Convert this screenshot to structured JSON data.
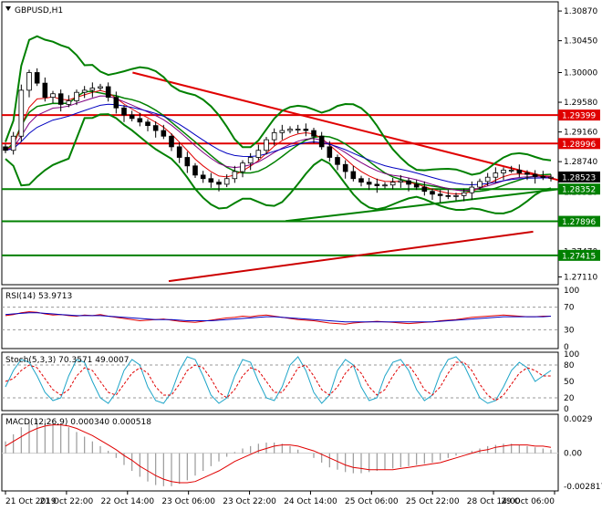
{
  "chart_data": {
    "type": "candlestick",
    "symbol_label": "GBPUSD,H1",
    "main": {
      "ylim": [
        1.27,
        1.31
      ],
      "yticks": [
        "1.30870",
        "1.30450",
        "1.30000",
        "1.29580",
        "1.29160",
        "1.28740",
        "1.28310",
        "1.27890",
        "1.27470",
        "1.27110"
      ],
      "price_labels": [
        {
          "text": "1.29399",
          "value": 1.29399,
          "color": "#e00000"
        },
        {
          "text": "1.28996",
          "value": 1.28996,
          "color": "#e00000"
        },
        {
          "text": "1.28523",
          "value": 1.28523,
          "color": "#000000"
        },
        {
          "text": "1.28352",
          "value": 1.28352,
          "color": "#008000"
        },
        {
          "text": "1.27896",
          "value": 1.27896,
          "color": "#008000"
        },
        {
          "text": "1.27415",
          "value": 1.27415,
          "color": "#008000"
        }
      ],
      "horizontal_lines": [
        {
          "value": 1.29399,
          "color": "#e00000"
        },
        {
          "value": 1.28996,
          "color": "#e00000"
        },
        {
          "value": 1.28352,
          "color": "#008000"
        },
        {
          "value": 1.27896,
          "color": "#008000"
        },
        {
          "value": 1.27415,
          "color": "#008000"
        }
      ],
      "trendlines": [
        {
          "color": "#e00000",
          "from": [
            0.235,
            1.3
          ],
          "to": [
            1.0,
            1.2848
          ]
        },
        {
          "color": "#008000",
          "from": [
            0.51,
            1.279
          ],
          "to": [
            1.0,
            1.2835
          ]
        },
        {
          "color": "#cc0000",
          "from": [
            0.3,
            1.2705
          ],
          "to": [
            0.955,
            1.2775
          ]
        }
      ],
      "closes": [
        1.289,
        1.291,
        1.2975,
        1.3,
        1.2985,
        1.2965,
        1.297,
        1.2955,
        1.296,
        1.2972,
        1.2975,
        1.2978,
        1.298,
        1.2965,
        1.295,
        1.294,
        1.2935,
        1.293,
        1.2925,
        1.2918,
        1.291,
        1.2895,
        1.288,
        1.2868,
        1.2855,
        1.285,
        1.2845,
        1.2842,
        1.285,
        1.286,
        1.2872,
        1.288,
        1.289,
        1.2905,
        1.2915,
        1.2918,
        1.292,
        1.292,
        1.2918,
        1.291,
        1.2895,
        1.288,
        1.287,
        1.286,
        1.285,
        1.2845,
        1.2842,
        1.284,
        1.2841,
        1.2845,
        1.2847,
        1.2842,
        1.2838,
        1.2832,
        1.2828,
        1.2826,
        1.2825,
        1.2826,
        1.283,
        1.2838,
        1.2846,
        1.2852,
        1.2858,
        1.2862,
        1.2862,
        1.2858,
        1.2856,
        1.2853,
        1.2852,
        1.2852
      ]
    },
    "rsi": {
      "label": "RSI(14) 53.9713",
      "yticks": [
        "100",
        "70",
        "30",
        "0"
      ],
      "ylim": [
        0,
        100
      ],
      "levels": [
        70,
        30
      ],
      "values": [
        55,
        57,
        60,
        62,
        61,
        58,
        56,
        57,
        55,
        54,
        56,
        55,
        57,
        54,
        52,
        50,
        48,
        46,
        47,
        48,
        49,
        47,
        45,
        44,
        43,
        45,
        47,
        49,
        51,
        52,
        54,
        53,
        55,
        56,
        54,
        52,
        50,
        48,
        47,
        46,
        44,
        42,
        41,
        40,
        42,
        43,
        44,
        45,
        44,
        43,
        42,
        41,
        42,
        43,
        44,
        46,
        47,
        48,
        50,
        52,
        53,
        54,
        55,
        56,
        55,
        54,
        53,
        53,
        54,
        54
      ],
      "ma_values": [
        57,
        58,
        59,
        60,
        60,
        59,
        58,
        57,
        56,
        55,
        55,
        55,
        55,
        54,
        53,
        52,
        51,
        50,
        49,
        48,
        48,
        48,
        47,
        46,
        46,
        46,
        46,
        47,
        48,
        49,
        50,
        51,
        52,
        53,
        53,
        52,
        51,
        50,
        49,
        48,
        47,
        46,
        45,
        44,
        44,
        44,
        44,
        44,
        44,
        44,
        44,
        44,
        44,
        44,
        44,
        45,
        46,
        47,
        48,
        49,
        50,
        51,
        52,
        53,
        53,
        53,
        53,
        53,
        53,
        54
      ]
    },
    "stoch": {
      "label": "Stoch(5,3,3) 70.3571 49.0007",
      "yticks": [
        "100",
        "80",
        "50",
        "20",
        "0"
      ],
      "ylim": [
        0,
        100
      ],
      "levels": [
        80,
        20
      ],
      "k_values": [
        40,
        70,
        90,
        85,
        60,
        30,
        15,
        20,
        60,
        90,
        85,
        50,
        20,
        10,
        30,
        70,
        90,
        80,
        40,
        15,
        10,
        30,
        70,
        95,
        90,
        60,
        25,
        10,
        20,
        60,
        90,
        85,
        50,
        20,
        15,
        40,
        80,
        95,
        70,
        30,
        10,
        25,
        70,
        90,
        80,
        40,
        15,
        20,
        60,
        85,
        90,
        70,
        35,
        15,
        25,
        65,
        90,
        95,
        80,
        50,
        20,
        10,
        15,
        40,
        70,
        85,
        75,
        50,
        60,
        70
      ],
      "d_values": [
        50,
        55,
        70,
        80,
        75,
        55,
        35,
        25,
        35,
        60,
        75,
        70,
        50,
        30,
        25,
        45,
        65,
        75,
        65,
        40,
        25,
        25,
        45,
        70,
        80,
        75,
        55,
        30,
        20,
        35,
        60,
        75,
        70,
        50,
        30,
        30,
        50,
        75,
        80,
        60,
        35,
        25,
        40,
        65,
        80,
        65,
        40,
        25,
        35,
        60,
        80,
        80,
        60,
        35,
        25,
        40,
        65,
        85,
        85,
        70,
        45,
        25,
        15,
        25,
        45,
        65,
        75,
        70,
        60,
        60
      ]
    },
    "macd": {
      "label": "MACD(12,26,9) 0.000340 0.000518",
      "yticks": [
        "0.0029",
        "0.00",
        "-0.002817"
      ],
      "ylim": [
        -0.0032,
        0.0033
      ],
      "hist": [
        0.001,
        0.0016,
        0.0022,
        0.0027,
        0.0029,
        0.0029,
        0.0027,
        0.0025,
        0.0022,
        0.0018,
        0.0014,
        0.001,
        0.0006,
        0.0002,
        -0.0004,
        -0.001,
        -0.0015,
        -0.002,
        -0.0024,
        -0.0027,
        -0.0028,
        -0.0028,
        -0.0026,
        -0.0023,
        -0.0019,
        -0.0015,
        -0.0011,
        -0.0007,
        -0.0003,
        0.0001,
        0.0004,
        0.0006,
        0.0008,
        0.0009,
        0.0009,
        0.0008,
        0.0006,
        0.0003,
        0.0,
        -0.0004,
        -0.0008,
        -0.0012,
        -0.0014,
        -0.0016,
        -0.0017,
        -0.0017,
        -0.0016,
        -0.0015,
        -0.0014,
        -0.0013,
        -0.0012,
        -0.0011,
        -0.001,
        -0.0009,
        -0.0008,
        -0.0006,
        -0.0004,
        -0.0002,
        0.0,
        0.0002,
        0.0004,
        0.0006,
        0.0007,
        0.0008,
        0.0008,
        0.0007,
        0.0006,
        0.0005,
        0.0004,
        0.0003
      ],
      "signal": [
        0.0006,
        0.001,
        0.0014,
        0.0018,
        0.0021,
        0.0023,
        0.0024,
        0.0024,
        0.0023,
        0.0021,
        0.0018,
        0.0015,
        0.0011,
        0.0007,
        0.0003,
        -0.0002,
        -0.0006,
        -0.0011,
        -0.0015,
        -0.0019,
        -0.0022,
        -0.0024,
        -0.0025,
        -0.0025,
        -0.0024,
        -0.0021,
        -0.0018,
        -0.0015,
        -0.0011,
        -0.0007,
        -0.0004,
        -0.0001,
        0.0002,
        0.0004,
        0.0006,
        0.0007,
        0.0007,
        0.0006,
        0.0004,
        0.0002,
        -0.0001,
        -0.0004,
        -0.0007,
        -0.001,
        -0.0012,
        -0.0013,
        -0.0014,
        -0.0014,
        -0.0014,
        -0.0014,
        -0.0013,
        -0.0012,
        -0.0011,
        -0.001,
        -0.0009,
        -0.0008,
        -0.0006,
        -0.0004,
        -0.0002,
        0.0,
        0.0002,
        0.0003,
        0.0005,
        0.0006,
        0.0007,
        0.0007,
        0.0007,
        0.0006,
        0.0006,
        0.0005
      ]
    },
    "xticks": [
      "21 Oct 2019",
      "21 Oct 22:00",
      "22 Oct 14:00",
      "23 Oct 06:00",
      "23 Oct 22:00",
      "24 Oct 14:00",
      "25 Oct 06:00",
      "25 Oct 22:00",
      "28 Oct 14:00",
      "29 Oct 06:00"
    ]
  }
}
